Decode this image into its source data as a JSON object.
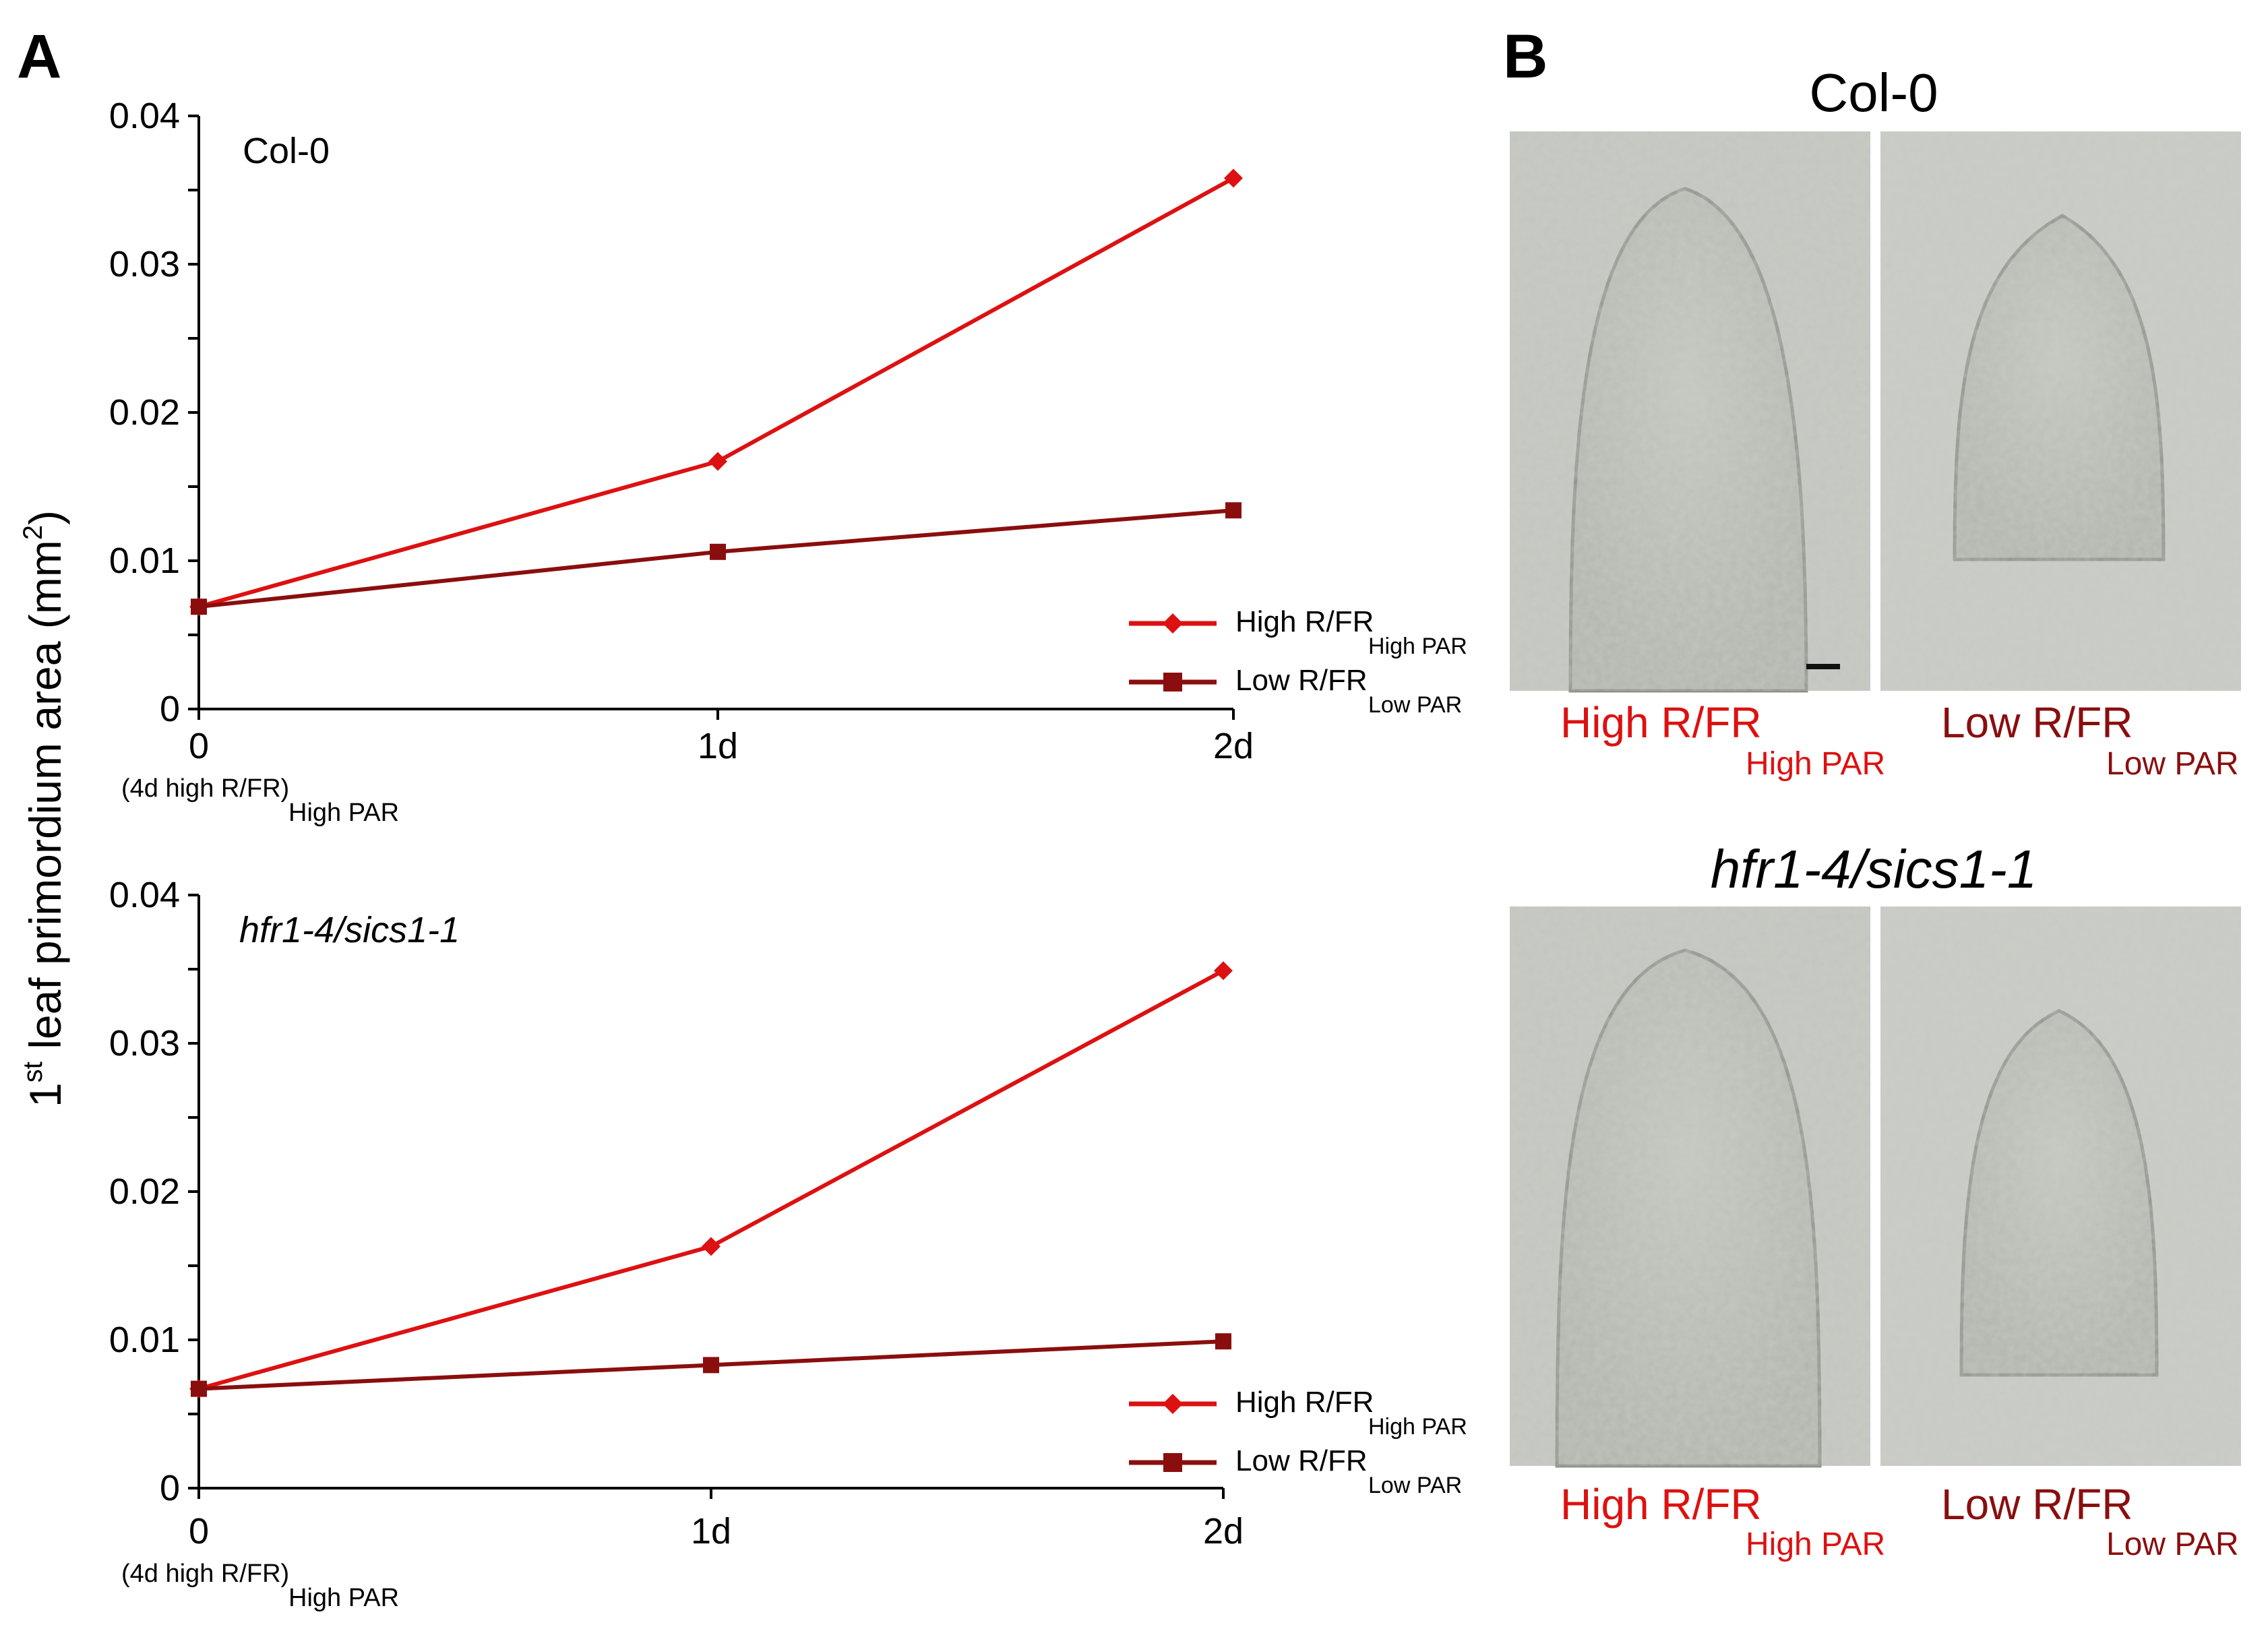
{
  "panels": {
    "A": "A",
    "B": "B"
  },
  "shared_ylabel": {
    "prefix": "1",
    "sup": "st",
    "main": " leaf primordium area (mm",
    "sup2": "2",
    "close": ")"
  },
  "chart_data": [
    {
      "type": "line",
      "inset_label": "Col-0",
      "x": [
        "0",
        "1d",
        "2d"
      ],
      "x_sublabel_main": "(4d high R/FR)",
      "x_sublabel_sub": "High PAR",
      "ylim": [
        0,
        0.04
      ],
      "yticks": [
        "0",
        "0.01",
        "0.02",
        "0.03",
        "0.04"
      ],
      "grid": false,
      "legend_position": "bottom-right",
      "series": [
        {
          "name_main": "High R/FR",
          "name_sub": "High PAR",
          "marker": "diamond",
          "color": "#dd1111",
          "values": [
            0.0069,
            0.0167,
            0.0358
          ]
        },
        {
          "name_main": "Low R/FR",
          "name_sub": "Low PAR",
          "marker": "square",
          "color": "#8a0e0e",
          "values": [
            0.0069,
            0.0106,
            0.0134
          ]
        }
      ]
    },
    {
      "type": "line",
      "inset_label": "hfr1-4/sics1-1",
      "x": [
        "0",
        "1d",
        "2d"
      ],
      "x_sublabel_main": "(4d high R/FR)",
      "x_sublabel_sub": "High PAR",
      "ylim": [
        0,
        0.04
      ],
      "yticks": [
        "0",
        "0.01",
        "0.02",
        "0.03",
        "0.04"
      ],
      "grid": false,
      "legend_position": "bottom-right",
      "series": [
        {
          "name_main": "High R/FR",
          "name_sub": "High PAR",
          "marker": "diamond",
          "color": "#dd1111",
          "values": [
            0.0067,
            0.0163,
            0.0349
          ]
        },
        {
          "name_main": "Low R/FR",
          "name_sub": "Low PAR",
          "marker": "square",
          "color": "#8a0e0e",
          "values": [
            0.0067,
            0.0083,
            0.0099
          ]
        }
      ]
    }
  ],
  "micrographs": {
    "top": {
      "title": "Col-0",
      "left": {
        "label_main": "High R/FR",
        "label_sub": "High PAR",
        "color": "#dd1111"
      },
      "right": {
        "label_main": "Low R/FR",
        "label_sub": "Low PAR",
        "color": "#8a0e0e"
      }
    },
    "bottom": {
      "title": "hfr1-4/sics1-1",
      "left": {
        "label_main": "High R/FR",
        "label_sub": "High PAR",
        "color": "#dd1111"
      },
      "right": {
        "label_main": "Low R/FR",
        "label_sub": "Low PAR",
        "color": "#8a0e0e"
      }
    }
  }
}
